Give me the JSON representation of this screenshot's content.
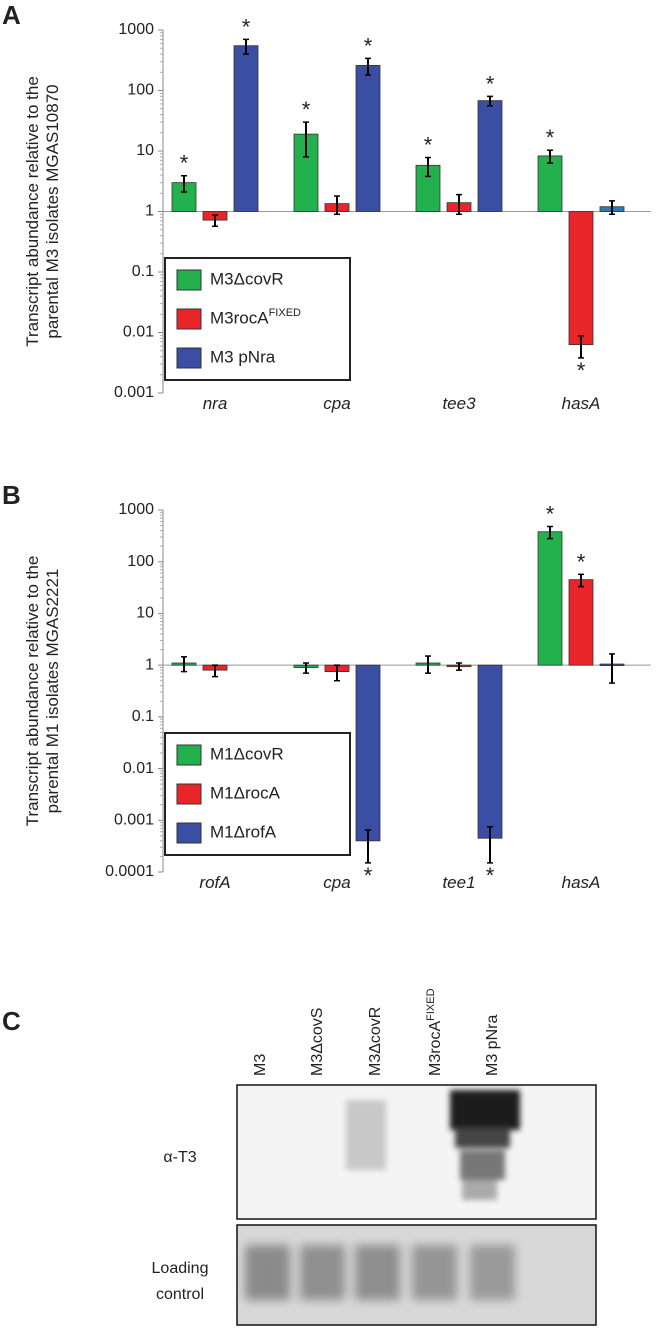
{
  "chart_data": [
    {
      "type": "bar",
      "panel": "A",
      "log_scale": true,
      "ylabel": [
        "Transcript abundance relative to the",
        "parental M3 isolates MGAS10870"
      ],
      "categories": [
        "nra",
        "cpa",
        "tee3",
        "hasA"
      ],
      "ylim": [
        0.001,
        1000
      ],
      "yticks": [
        0.001,
        0.01,
        0.1,
        1,
        10,
        100,
        1000
      ],
      "legend": "lower left",
      "series": [
        {
          "name": "M3ΔcovR",
          "color": "#22b14c",
          "values": [
            3.0,
            19,
            5.8,
            8.3
          ],
          "errors": [
            0.9,
            11,
            2,
            2
          ],
          "significance": [
            "*",
            "*",
            "*",
            "*"
          ]
        },
        {
          "name": "M3rocA",
          "name_superscript": "FIXED",
          "color": "#e8262a",
          "values": [
            0.72,
            1.35,
            1.4,
            0.0063
          ],
          "errors": [
            0.15,
            0.45,
            0.5,
            0.0025
          ],
          "significance": [
            null,
            null,
            null,
            "*"
          ]
        },
        {
          "name": "M3 pNra",
          "color": "#3a4fa3",
          "colors": [
            "#3a4fa3",
            "#3a4fa3",
            "#3a4fa3",
            "#2b7bba"
          ],
          "values": [
            550,
            260,
            68,
            1.2
          ],
          "errors": [
            150,
            80,
            12,
            0.3
          ],
          "significance": [
            "*",
            "*",
            "*",
            null
          ]
        }
      ]
    },
    {
      "type": "bar",
      "panel": "B",
      "log_scale": true,
      "ylabel": [
        "Transcript abundance relative to the",
        "parental M1 isolates MGAS2221"
      ],
      "categories": [
        "rofA",
        "cpa",
        "tee1",
        "hasA"
      ],
      "ylim": [
        0.0001,
        1000
      ],
      "yticks": [
        0.0001,
        0.001,
        0.01,
        0.1,
        1,
        10,
        100,
        1000
      ],
      "legend": "lower left",
      "series": [
        {
          "name": "M1ΔcovR",
          "color": "#22b14c",
          "values": [
            1.1,
            0.9,
            1.1,
            380
          ],
          "errors": [
            0.35,
            0.2,
            0.4,
            100
          ],
          "significance": [
            null,
            null,
            null,
            "*"
          ]
        },
        {
          "name": "M1ΔrocA",
          "color": "#e8262a",
          "values": [
            0.8,
            0.75,
            0.95,
            45
          ],
          "errors": [
            0.2,
            0.25,
            0.15,
            12
          ],
          "significance": [
            null,
            null,
            null,
            "*"
          ]
        },
        {
          "name": "M1ΔrofA",
          "color": "#3a4fa3",
          "values": [
            null,
            0.0004,
            0.00045,
            1.05
          ],
          "errors": [
            null,
            0.00025,
            0.0003,
            0.6
          ],
          "significance": [
            null,
            "*",
            "*",
            null
          ]
        }
      ]
    }
  ],
  "blot": {
    "panel": "C",
    "lanes": [
      {
        "text": "M3"
      },
      {
        "text": "M3ΔcovS"
      },
      {
        "text": "M3ΔcovR"
      },
      {
        "text": "M3rocA",
        "superscript": "FIXED"
      },
      {
        "text": "M3 pNra"
      }
    ],
    "row_labels": [
      [
        "α-T3"
      ],
      [
        "Loading",
        "control"
      ]
    ]
  }
}
